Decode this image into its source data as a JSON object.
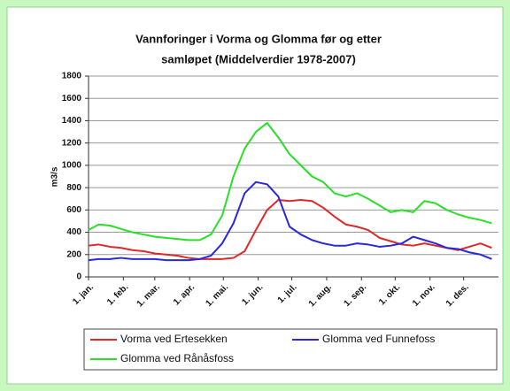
{
  "chart_data": {
    "type": "line",
    "title": [
      "Vannforinger i Vorma og Glomma før og etter",
      "samløpet  (Middelverdier 1978-2007)"
    ],
    "y_label": "m3/s",
    "x": [
      1,
      10,
      20,
      30,
      40,
      50,
      60,
      70,
      80,
      90,
      100,
      110,
      120,
      130,
      140,
      150,
      160,
      170,
      180,
      190,
      200,
      210,
      220,
      230,
      240,
      250,
      260,
      270,
      280,
      290,
      300,
      310,
      320,
      330,
      340,
      350,
      360
    ],
    "series": [
      {
        "name": "Vorma ved Ertesekken",
        "color": "#e02828",
        "values": [
          280,
          290,
          270,
          260,
          240,
          230,
          210,
          200,
          190,
          170,
          160,
          160,
          160,
          170,
          230,
          420,
          600,
          690,
          680,
          690,
          680,
          620,
          540,
          470,
          450,
          420,
          350,
          320,
          290,
          280,
          300,
          280,
          260,
          240,
          270,
          300,
          260
        ]
      },
      {
        "name": "Glomma ved Funnefoss",
        "color": "#2828e0",
        "values": [
          150,
          160,
          160,
          170,
          160,
          160,
          160,
          150,
          150,
          150,
          160,
          190,
          300,
          480,
          750,
          850,
          830,
          720,
          450,
          380,
          330,
          300,
          280,
          280,
          300,
          290,
          270,
          280,
          300,
          360,
          330,
          300,
          260,
          250,
          220,
          200,
          160
        ]
      },
      {
        "name": "Glomma ved Rånåsfoss",
        "color": "#28e028",
        "values": [
          420,
          470,
          460,
          430,
          400,
          380,
          360,
          350,
          340,
          330,
          330,
          380,
          550,
          900,
          1150,
          1300,
          1380,
          1250,
          1100,
          1000,
          900,
          850,
          750,
          720,
          750,
          700,
          640,
          580,
          600,
          580,
          680,
          660,
          600,
          560,
          530,
          510,
          480
        ]
      }
    ],
    "xlim": [
      1,
      366
    ],
    "xticks": [
      {
        "value": 1,
        "label": "1. jan."
      },
      {
        "value": 32,
        "label": "1. feb."
      },
      {
        "value": 60,
        "label": "1. mar."
      },
      {
        "value": 91,
        "label": "1. apr."
      },
      {
        "value": 121,
        "label": "1. mai."
      },
      {
        "value": 152,
        "label": "1. jun."
      },
      {
        "value": 182,
        "label": "1. jul."
      },
      {
        "value": 213,
        "label": "1. aug."
      },
      {
        "value": 244,
        "label": "1. sep."
      },
      {
        "value": 274,
        "label": "1. okt."
      },
      {
        "value": 305,
        "label": "1. nov."
      },
      {
        "value": 335,
        "label": "1. des."
      }
    ],
    "ylim": [
      0,
      1800
    ],
    "yticks": [
      0,
      200,
      400,
      600,
      800,
      1000,
      1200,
      1400,
      1600,
      1800
    ],
    "grid": true
  }
}
